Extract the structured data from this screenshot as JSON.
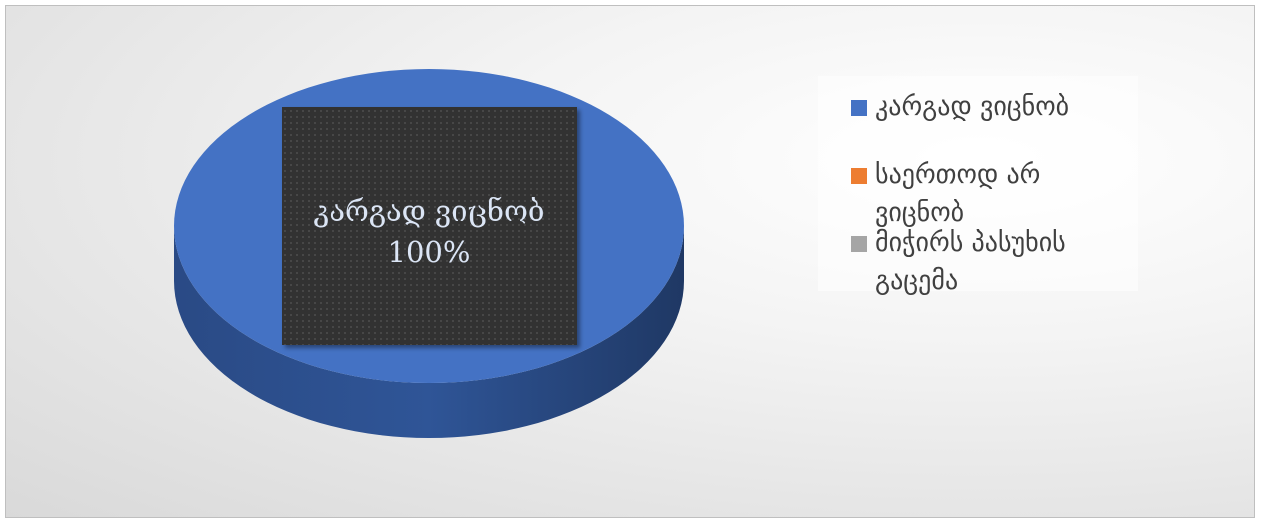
{
  "chart_data": {
    "type": "pie3d",
    "categories": [
      "კარგად ვიცნობ",
      "საერთოდ არ ვიცნობ",
      "მიჭირს პასუხის გაცემა"
    ],
    "values": [
      100,
      0,
      0
    ],
    "value_labels": [
      "100%",
      null,
      null
    ],
    "colors": [
      "#4472c4",
      "#ed7d31",
      "#a5a5a5"
    ],
    "legend": "right"
  }
}
